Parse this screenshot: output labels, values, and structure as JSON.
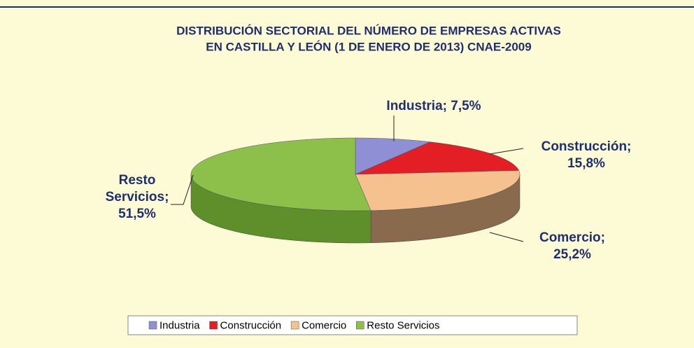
{
  "chart_data": {
    "type": "pie3d",
    "title": [
      "DISTRIBUCIÓN SECTORIAL DEL NÚMERO DE EMPRESAS ACTIVAS",
      "EN CASTILLA Y LEÓN (1 DE ENERO DE 2013) CNAE-2009"
    ],
    "categories": [
      "Industria",
      "Construcción",
      "Comercio",
      "Resto Servicios"
    ],
    "values": [
      7.5,
      15.8,
      25.2,
      51.5
    ],
    "value_labels": [
      [
        "Industria; 7,5%"
      ],
      [
        "Construcción;",
        "15,8%"
      ],
      [
        "Comercio;",
        "25,2%"
      ],
      [
        "Resto",
        "Servicios;",
        "51,5%"
      ]
    ],
    "colors": [
      "#8f8fd6",
      "#e31e24",
      "#f4c18f",
      "#8cc04a"
    ],
    "side_colors": [
      "#5f5fa0",
      "#a0151a",
      "#8a6a4c",
      "#5f8f2a"
    ],
    "legend": "bottom"
  }
}
